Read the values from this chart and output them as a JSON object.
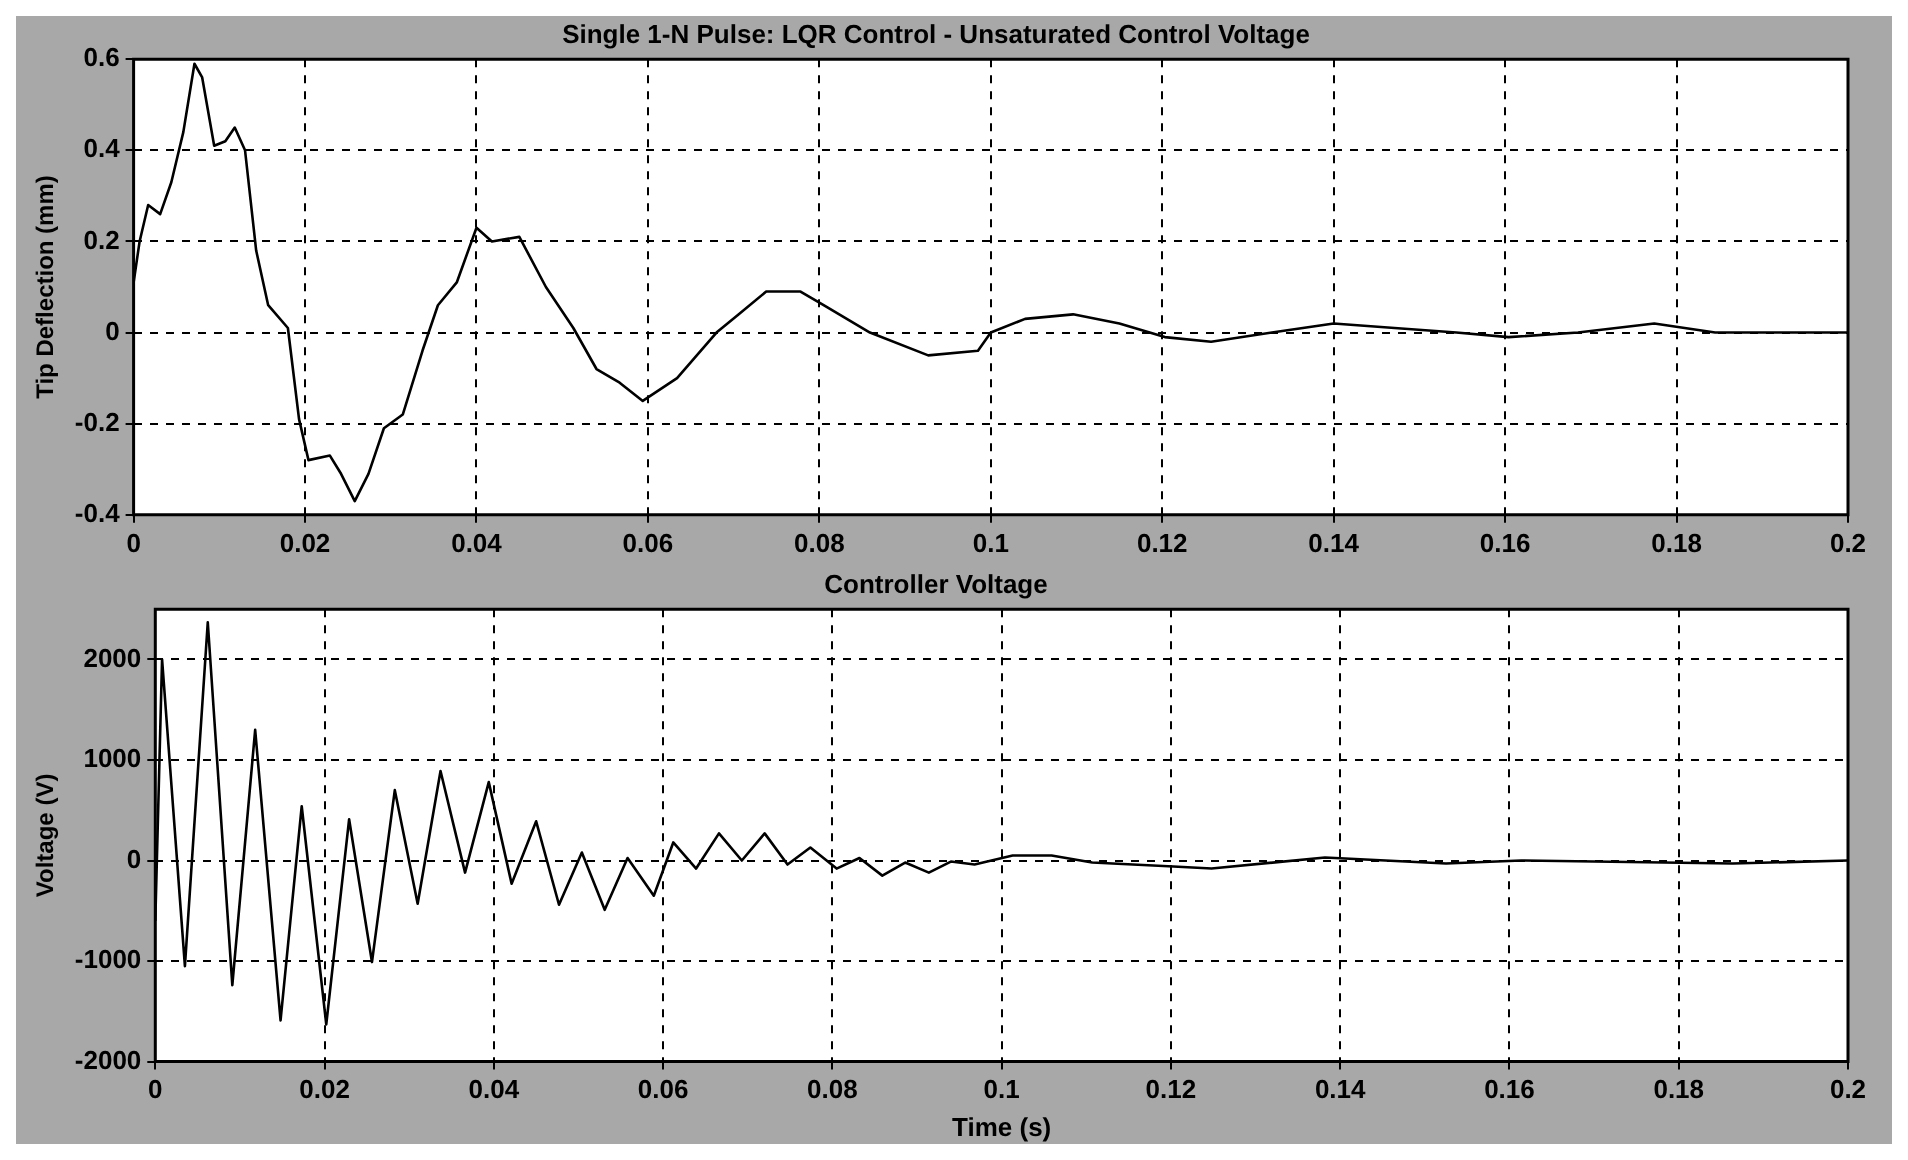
{
  "chart_data": [
    {
      "type": "line",
      "title": "Single 1-N Pulse: LQR Control - Unsaturated Control Voltage",
      "ylabel": "Tip Deflection (mm)",
      "grid": true,
      "xlim": [
        0,
        0.2
      ],
      "xticks": [
        0,
        0.02,
        0.04,
        0.06,
        0.08,
        0.1,
        0.12,
        0.14,
        0.16,
        0.18,
        0.2
      ],
      "ylim": [
        -0.4,
        0.6
      ],
      "yticks": [
        -0.4,
        -0.2,
        0,
        0.2,
        0.4,
        0.6
      ],
      "series": [
        {
          "color": "#000000",
          "x": [
            0,
            0.0007,
            0.0017,
            0.0031,
            0.0044,
            0.0058,
            0.0071,
            0.008,
            0.0094,
            0.0107,
            0.0118,
            0.013,
            0.0143,
            0.0157,
            0.018,
            0.0193,
            0.0204,
            0.0229,
            0.0242,
            0.0258,
            0.0274,
            0.0292,
            0.0314,
            0.0337,
            0.0355,
            0.0377,
            0.04,
            0.0418,
            0.045,
            0.0481,
            0.0513,
            0.054,
            0.0567,
            0.0594,
            0.0634,
            0.068,
            0.0706,
            0.0738,
            0.0778,
            0.0805,
            0.0859,
            0.0927,
            0.0985,
            0.1,
            0.104,
            0.1096,
            0.115,
            0.1203,
            0.1257,
            0.1328,
            0.14,
            0.1471,
            0.1543,
            0.1604,
            0.1685,
            0.1774,
            0.1845,
            0.2
          ],
          "values": [
            0.11,
            0.2,
            0.28,
            0.26,
            0.33,
            0.44,
            0.59,
            0.56,
            0.41,
            0.42,
            0.45,
            0.4,
            0.18,
            0.06,
            0.01,
            -0.19,
            -0.28,
            -0.27,
            -0.31,
            -0.37,
            -0.31,
            -0.21,
            -0.18,
            -0.04,
            0.06,
            0.11,
            0.23,
            0.2,
            0.21,
            0.1,
            0.01,
            -0.08,
            -0.11,
            -0.15,
            -0.1,
            0,
            0.04,
            0.09,
            0.09,
            0.06,
            0,
            -0.05,
            -0.04,
            0,
            0.03,
            0.04,
            0.02,
            -0.01,
            -0.02,
            0,
            0.02,
            0.01,
            0,
            -0.01,
            0,
            0.02,
            0,
            0
          ]
        }
      ]
    },
    {
      "type": "line",
      "title": "Controller Voltage",
      "xlabel": "Time (s)",
      "ylabel": "Voltage (V)",
      "grid": true,
      "xlim": [
        0,
        0.2
      ],
      "xticks": [
        0,
        0.02,
        0.04,
        0.06,
        0.08,
        0.1,
        0.12,
        0.14,
        0.16,
        0.18,
        0.2
      ],
      "ylim": [
        -2000,
        2500
      ],
      "yticks": [
        -2000,
        -1000,
        0,
        1000,
        2000
      ],
      "series": [
        {
          "color": "#000000",
          "x": [
            0,
            0.0008,
            0.0035,
            0.0062,
            0.0091,
            0.0118,
            0.0148,
            0.0173,
            0.0202,
            0.0229,
            0.0256,
            0.0283,
            0.031,
            0.0337,
            0.0366,
            0.0394,
            0.0421,
            0.045,
            0.0477,
            0.0504,
            0.0531,
            0.0558,
            0.0589,
            0.0612,
            0.0639,
            0.0666,
            0.0693,
            0.072,
            0.0747,
            0.0774,
            0.0805,
            0.0832,
            0.0859,
            0.0886,
            0.0914,
            0.094,
            0.0968,
            0.1013,
            0.1059,
            0.1107,
            0.1203,
            0.1248,
            0.1382,
            0.1525,
            0.1614,
            0.1864,
            0.2
          ],
          "values": [
            -600,
            2000,
            -1050,
            2370,
            -1240,
            1300,
            -1590,
            540,
            -1630,
            410,
            -1010,
            700,
            -430,
            890,
            -120,
            780,
            -230,
            390,
            -440,
            80,
            -490,
            25,
            -350,
            180,
            -80,
            270,
            0,
            270,
            -40,
            130,
            -80,
            25,
            -150,
            -20,
            -120,
            -10,
            -40,
            50,
            50,
            -20,
            -60,
            -80,
            30,
            -30,
            0,
            -30,
            0
          ]
        }
      ]
    }
  ]
}
